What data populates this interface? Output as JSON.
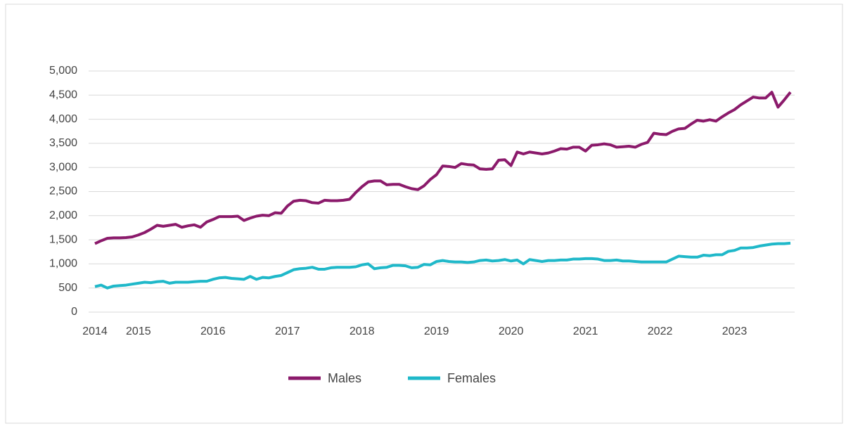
{
  "chart_data": {
    "type": "line",
    "categories": [
      "2014",
      null,
      null,
      null,
      null,
      null,
      null,
      "2015",
      null,
      null,
      null,
      null,
      null,
      null,
      null,
      null,
      null,
      null,
      null,
      "2016",
      null,
      null,
      null,
      null,
      null,
      null,
      null,
      null,
      null,
      null,
      null,
      "2017",
      null,
      null,
      null,
      null,
      null,
      null,
      null,
      null,
      null,
      null,
      null,
      "2018",
      null,
      null,
      null,
      null,
      null,
      null,
      null,
      null,
      null,
      null,
      null,
      "2019",
      null,
      null,
      null,
      null,
      null,
      null,
      null,
      null,
      null,
      null,
      null,
      "2020",
      null,
      null,
      null,
      null,
      null,
      null,
      null,
      null,
      null,
      null,
      null,
      "2021",
      null,
      null,
      null,
      null,
      null,
      null,
      null,
      null,
      null,
      null,
      null,
      "2022",
      null,
      null,
      null,
      null,
      null,
      null,
      null,
      null,
      null,
      null,
      null,
      "2023",
      null,
      null,
      null,
      null,
      null,
      null,
      null,
      null,
      null
    ],
    "series": [
      {
        "name": "Males",
        "color": "#8b1a6b",
        "values": [
          1420,
          1480,
          1530,
          1540,
          1540,
          1545,
          1560,
          1600,
          1650,
          1720,
          1800,
          1780,
          1800,
          1820,
          1760,
          1790,
          1810,
          1760,
          1870,
          1920,
          1980,
          1980,
          1980,
          1990,
          1900,
          1950,
          1990,
          2010,
          2000,
          2060,
          2050,
          2200,
          2300,
          2320,
          2310,
          2270,
          2260,
          2320,
          2310,
          2310,
          2320,
          2340,
          2480,
          2600,
          2700,
          2720,
          2720,
          2640,
          2650,
          2650,
          2600,
          2560,
          2540,
          2620,
          2750,
          2850,
          3030,
          3020,
          3000,
          3080,
          3060,
          3050,
          2970,
          2960,
          2970,
          3150,
          3160,
          3040,
          3320,
          3280,
          3320,
          3300,
          3280,
          3300,
          3340,
          3390,
          3380,
          3420,
          3420,
          3340,
          3460,
          3470,
          3490,
          3470,
          3420,
          3430,
          3440,
          3420,
          3480,
          3520,
          3710,
          3690,
          3680,
          3750,
          3800,
          3810,
          3900,
          3980,
          3960,
          3990,
          3960,
          4050,
          4130,
          4200,
          4300,
          4380,
          4460,
          4440,
          4440,
          4560,
          4250,
          4400,
          4560
        ]
      },
      {
        "name": "Females",
        "color": "#1fb8c9",
        "values": [
          530,
          560,
          500,
          540,
          550,
          560,
          580,
          600,
          620,
          610,
          630,
          640,
          600,
          620,
          620,
          620,
          630,
          640,
          640,
          680,
          710,
          720,
          700,
          690,
          680,
          740,
          680,
          720,
          710,
          740,
          760,
          820,
          880,
          900,
          910,
          930,
          890,
          890,
          920,
          930,
          930,
          930,
          940,
          980,
          1000,
          900,
          920,
          930,
          970,
          970,
          960,
          920,
          930,
          990,
          980,
          1050,
          1070,
          1050,
          1040,
          1040,
          1030,
          1040,
          1070,
          1080,
          1060,
          1070,
          1090,
          1060,
          1080,
          1000,
          1090,
          1070,
          1050,
          1070,
          1070,
          1080,
          1080,
          1100,
          1100,
          1110,
          1110,
          1100,
          1070,
          1070,
          1080,
          1060,
          1060,
          1050,
          1040,
          1040,
          1040,
          1040,
          1040,
          1100,
          1160,
          1150,
          1140,
          1140,
          1180,
          1170,
          1190,
          1190,
          1260,
          1280,
          1330,
          1330,
          1340,
          1370,
          1390,
          1410,
          1420,
          1420,
          1430
        ]
      }
    ],
    "ylim": [
      0,
      5000
    ],
    "yticks": [
      0,
      500,
      {
        "value": 1000,
        "label": "1,000"
      },
      {
        "value": 1500,
        "label": "1,500"
      },
      {
        "value": 2000,
        "label": "2,000"
      },
      {
        "value": 2500,
        "label": "2,500"
      },
      {
        "value": 3000,
        "label": "3,000"
      },
      {
        "value": 3500,
        "label": "3,500"
      },
      {
        "value": 4000,
        "label": "4,000"
      },
      {
        "value": 4500,
        "label": "4,500"
      },
      {
        "value": 5000,
        "label": "5,000"
      }
    ],
    "grid": true,
    "legend": "bottom"
  }
}
